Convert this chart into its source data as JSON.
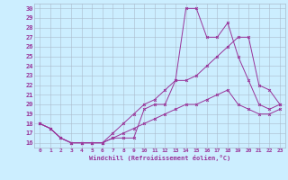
{
  "title": "",
  "xlabel": "Windchill (Refroidissement éolien,°C)",
  "background_color": "#cceeff",
  "grid_color": "#aabbcc",
  "line_color": "#993399",
  "xlim": [
    -0.5,
    23.5
  ],
  "ylim": [
    15.5,
    30.5
  ],
  "xticks": [
    0,
    1,
    2,
    3,
    4,
    5,
    6,
    7,
    8,
    9,
    10,
    11,
    12,
    13,
    14,
    15,
    16,
    17,
    18,
    19,
    20,
    21,
    22,
    23
  ],
  "yticks": [
    16,
    17,
    18,
    19,
    20,
    21,
    22,
    23,
    24,
    25,
    26,
    27,
    28,
    29,
    30
  ],
  "line1_x": [
    0,
    1,
    2,
    3,
    4,
    5,
    6,
    7,
    8,
    9,
    10,
    11,
    12,
    13,
    14,
    15,
    16,
    17,
    18,
    19,
    20,
    21,
    22,
    23
  ],
  "line1_y": [
    18,
    17.5,
    16.5,
    16,
    16,
    16,
    16,
    16.5,
    16.5,
    16.5,
    19.5,
    20,
    20,
    22.5,
    30,
    30,
    27,
    27,
    28.5,
    25,
    22.5,
    20,
    19.5,
    20
  ],
  "line2_x": [
    0,
    1,
    2,
    3,
    4,
    5,
    6,
    7,
    8,
    9,
    10,
    11,
    12,
    13,
    14,
    15,
    16,
    17,
    18,
    19,
    20,
    21,
    22,
    23
  ],
  "line2_y": [
    18,
    17.5,
    16.5,
    16,
    16,
    16,
    16,
    17,
    18,
    19,
    20,
    20.5,
    21.5,
    22.5,
    22.5,
    23,
    24,
    25,
    26,
    27,
    27,
    22,
    21.5,
    20
  ],
  "line3_x": [
    0,
    1,
    2,
    3,
    4,
    5,
    6,
    7,
    8,
    9,
    10,
    11,
    12,
    13,
    14,
    15,
    16,
    17,
    18,
    19,
    20,
    21,
    22,
    23
  ],
  "line3_y": [
    18,
    17.5,
    16.5,
    16,
    16,
    16,
    16,
    16.5,
    17,
    17.5,
    18,
    18.5,
    19,
    19.5,
    20,
    20,
    20.5,
    21,
    21.5,
    20,
    19.5,
    19,
    19,
    19.5
  ]
}
